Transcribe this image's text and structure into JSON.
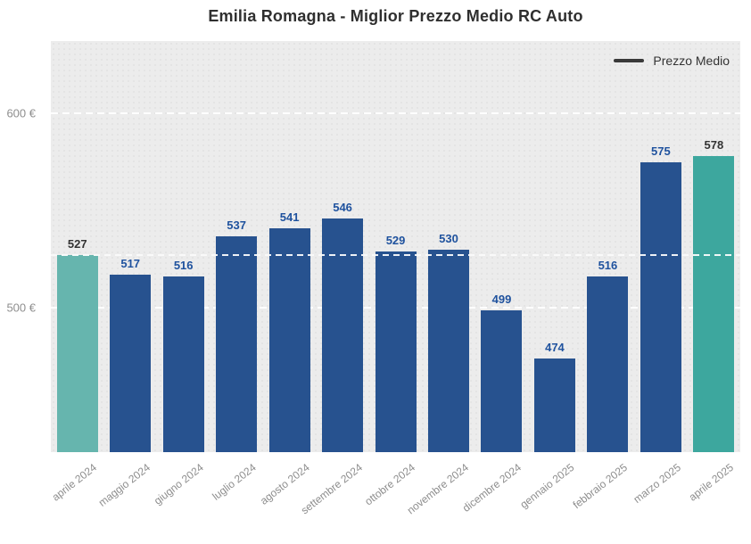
{
  "title": "Emilia Romagna - Miglior Prezzo Medio RC Auto",
  "legend": {
    "label": "Prezzo Medio",
    "swatch_color": "#3a3a3a",
    "position": "top-right"
  },
  "colors": {
    "bar_default": "#27528f",
    "bar_first_highlight": "#66b5ae",
    "bar_last_highlight": "#3da79e",
    "value_label_default": "#1f529e",
    "value_label_highlight": "#333333",
    "plot_background": "#ececec",
    "gridline": "#ffffff",
    "reference_line": "#b3b3b6",
    "axis_text": "#8e8e8e",
    "title_text": "#2f2f2f"
  },
  "y_axis": {
    "ticks": [
      {
        "value": 600,
        "label": "600 €"
      },
      {
        "value": 500,
        "label": "500 €"
      }
    ]
  },
  "reference_line": {
    "value": 527
  },
  "chart_data": {
    "type": "bar",
    "title": "Emilia Romagna - Miglior Prezzo Medio RC Auto",
    "series_name": "Prezzo Medio",
    "categories": [
      "aprile 2024",
      "maggio 2024",
      "giugno 2024",
      "luglio 2024",
      "agosto 2024",
      "settembre 2024",
      "ottobre 2024",
      "novembre 2024",
      "dicembre 2024",
      "gennaio 2025",
      "febbraio 2025",
      "marzo 2025",
      "aprile 2025"
    ],
    "values": [
      527,
      517,
      516,
      537,
      541,
      546,
      529,
      530,
      499,
      474,
      516,
      575,
      578
    ],
    "unit": "€",
    "highlight_indices": [
      0,
      12
    ],
    "xlabel": "",
    "ylabel": "",
    "ylim": [
      426,
      637
    ],
    "grid": "dashed-horizontal-at-500-600",
    "reference_line_value": 527,
    "legend_position": "top-right"
  }
}
